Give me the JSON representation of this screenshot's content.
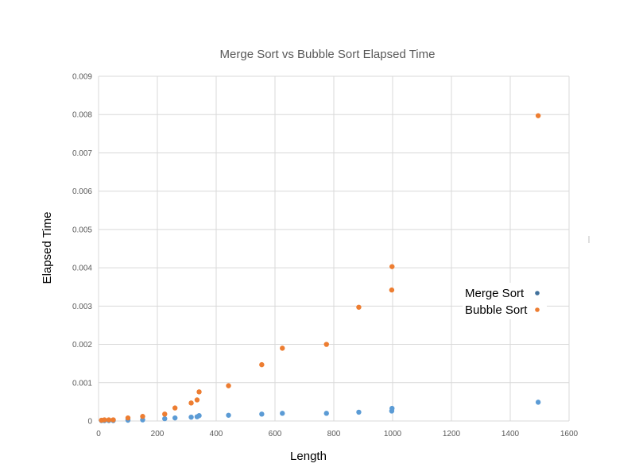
{
  "chart_data": {
    "type": "scatter",
    "title": "Merge Sort vs Bubble Sort Elapsed Time",
    "xlabel": "Length",
    "ylabel": "Elapsed Time",
    "xlim": [
      0,
      1600
    ],
    "ylim": [
      0,
      0.009
    ],
    "x_ticks": [
      "0",
      "200",
      "400",
      "600",
      "800",
      "1000",
      "1200",
      "1400",
      "1600"
    ],
    "y_ticks": [
      "0",
      "0.001",
      "0.002",
      "0.003",
      "0.004",
      "0.005",
      "0.006",
      "0.007",
      "0.008",
      "0.009"
    ],
    "grid": true,
    "legend_position": "right",
    "series": [
      {
        "name": "Merge Sort",
        "color": "#5b9bd5",
        "legend_color": "#41719c",
        "points": [
          [
            10,
            1e-05
          ],
          [
            20,
            1e-05
          ],
          [
            35,
            1e-05
          ],
          [
            50,
            1e-05
          ],
          [
            100,
            2e-05
          ],
          [
            150,
            3e-05
          ],
          [
            225,
            6e-05
          ],
          [
            260,
            8e-05
          ],
          [
            315,
            0.0001
          ],
          [
            335,
            0.00011
          ],
          [
            342,
            0.00014
          ],
          [
            442,
            0.00015
          ],
          [
            555,
            0.00018
          ],
          [
            625,
            0.0002
          ],
          [
            775,
            0.0002
          ],
          [
            885,
            0.00023
          ],
          [
            997,
            0.00026
          ],
          [
            998,
            0.00033
          ],
          [
            1495,
            0.00049
          ]
        ]
      },
      {
        "name": "Bubble Sort",
        "color": "#ed7d31",
        "legend_color": "#ed7d31",
        "points": [
          [
            10,
            2e-05
          ],
          [
            20,
            3e-05
          ],
          [
            35,
            3e-05
          ],
          [
            50,
            3e-05
          ],
          [
            100,
            8e-05
          ],
          [
            150,
            0.00012
          ],
          [
            225,
            0.00018
          ],
          [
            260,
            0.00034
          ],
          [
            315,
            0.00047
          ],
          [
            335,
            0.00055
          ],
          [
            342,
            0.00076
          ],
          [
            442,
            0.00092
          ],
          [
            555,
            0.00147
          ],
          [
            625,
            0.0019
          ],
          [
            775,
            0.002
          ],
          [
            885,
            0.00297
          ],
          [
            997,
            0.00342
          ],
          [
            998,
            0.00403
          ],
          [
            1495,
            0.00797
          ]
        ]
      }
    ]
  }
}
